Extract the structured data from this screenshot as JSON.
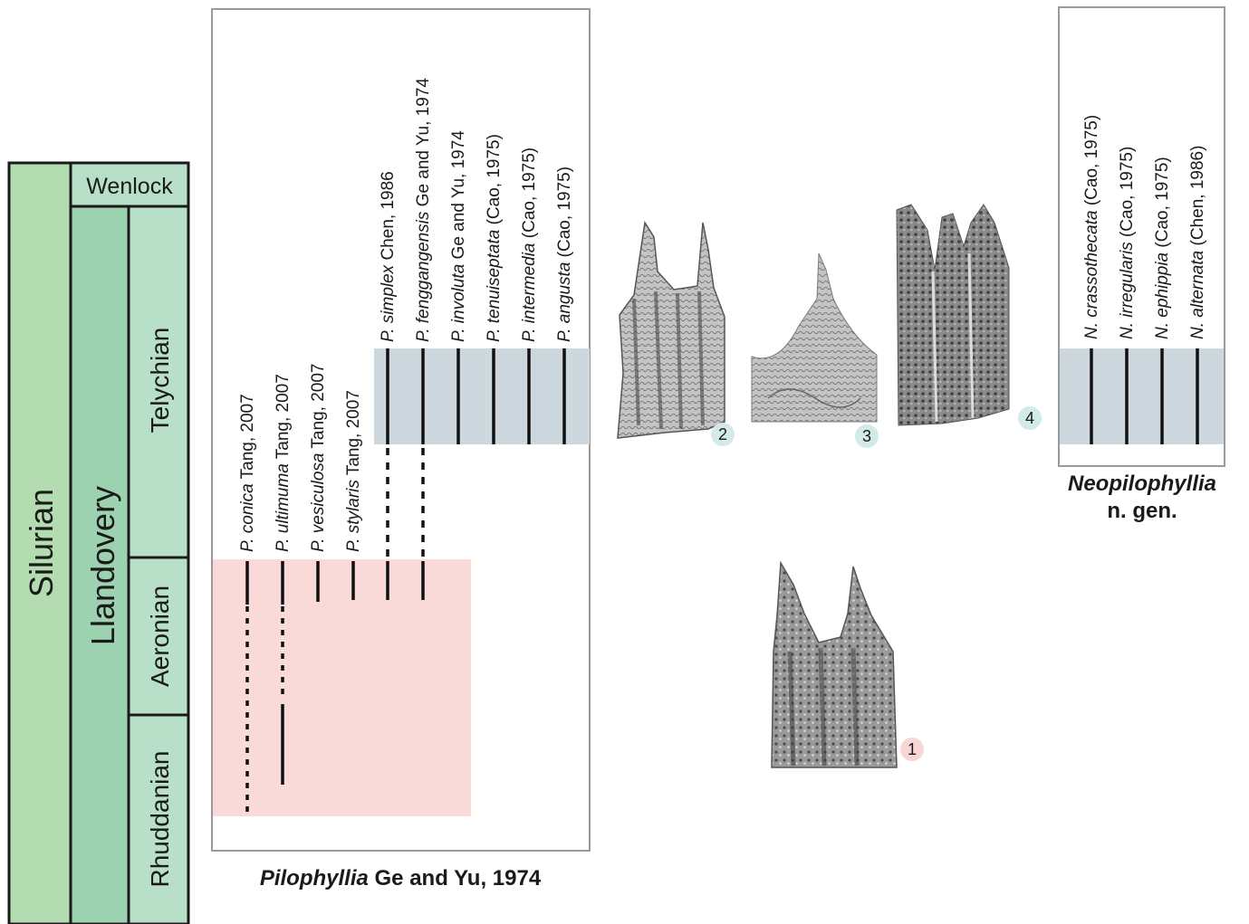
{
  "stratigraphy": {
    "system": "Silurian",
    "series": [
      {
        "name": "Wenlock",
        "stages": []
      },
      {
        "name": "Llandovery",
        "stages": [
          "Telychian",
          "Aeronian",
          "Rhuddanian"
        ]
      }
    ]
  },
  "colors": {
    "silurian": "#b3ddb0",
    "series": "#9cd2b0",
    "stage": "#b8e0c8",
    "pink_zone": "#fad9d9",
    "blue_zone": "#ccd7de",
    "badge_pink": "#f8d6d6",
    "badge_blue": "#d3ebe8",
    "frame": "#9a9a9a"
  },
  "pilophyllia": {
    "genus": "Pilophyllia",
    "author": " Ge and Yu, 1974",
    "species": [
      {
        "epithet": "P. conica",
        "author": " Tang, 2007"
      },
      {
        "epithet": "P. ultimuma",
        "author": " Tang, 2007"
      },
      {
        "epithet": "P. vesiculosa",
        "author": " Tang, 2007"
      },
      {
        "epithet": "P. stylaris",
        "author": " Tang, 2007"
      },
      {
        "epithet": "P. simplex",
        "author": " Chen, 1986"
      },
      {
        "epithet": "P. fenggangensis",
        "author": " Ge and Yu, 1974"
      },
      {
        "epithet": "P. involuta",
        "author": " Ge and Yu, 1974"
      },
      {
        "epithet": "P. tenuiseptata",
        "author": " (Cao, 1975)"
      },
      {
        "epithet": "P. intermedia",
        "author": " (Cao, 1975)"
      },
      {
        "epithet": "P. angusta",
        "author": " (Cao, 1975)"
      }
    ]
  },
  "neopilophyllia": {
    "genus": "Neopilophyllia",
    "subtitle": "n. gen.",
    "species": [
      {
        "epithet": "N. crassothecata",
        "author": " (Cao, 1975)"
      },
      {
        "epithet": "N. irregularis",
        "author": " (Cao, 1975)"
      },
      {
        "epithet": "N. ephippia",
        "author": " (Cao, 1975)"
      },
      {
        "epithet": "N. alternata",
        "author": " (Chen, 1986)"
      }
    ]
  },
  "specimens": [
    {
      "number": "1",
      "badge_color": "pink"
    },
    {
      "number": "2",
      "badge_color": "blue"
    },
    {
      "number": "3",
      "badge_color": "blue"
    },
    {
      "number": "4",
      "badge_color": "blue"
    }
  ]
}
